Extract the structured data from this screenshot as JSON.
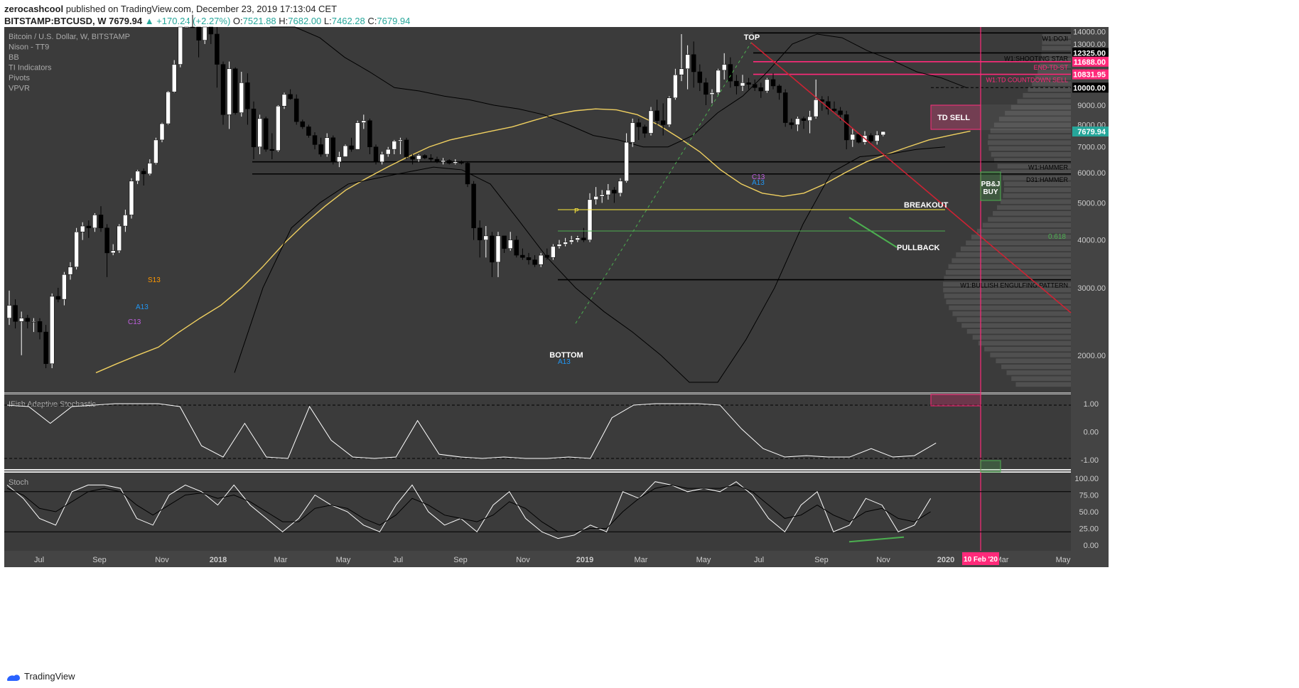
{
  "header": {
    "author": "zerocashcool",
    "published": "published on TradingView.com, December 23, 2019 17:13:04 CET",
    "symbol": "BITSTAMP:BTCUSD, W",
    "last": "7679.94",
    "change": "+170.24 (+2.27%)",
    "o_label": "O:",
    "o": "7521.88",
    "h_label": "H:",
    "h": "7682.00",
    "l_label": "L:",
    "l": "7462.28",
    "c_label": "C:",
    "c": "7679.94"
  },
  "legend": [
    "Bitcoin / U.S. Dollar, W, BITSTAMP",
    "Nison - TT9",
    "BB",
    "TI Indicators",
    "Pivots",
    "VPVR"
  ],
  "footer": {
    "brand": "TradingView"
  },
  "colors": {
    "background": "#3b3b3b",
    "up_candle": "#ffffff",
    "down_candle": "#000000",
    "ma_line": "#f0d060",
    "resistance_line": "#cc2233",
    "magenta": "#ff2a7a",
    "green": "#4caf50",
    "axis_text": "#cccccc"
  },
  "chart_data": {
    "type": "candlestick",
    "title": "Bitcoin / U.S. Dollar, W, BITSTAMP",
    "timeframe": "W",
    "x_tick_labels": [
      "Jul",
      "Sep",
      "Nov",
      "2018",
      "Mar",
      "May",
      "Jul",
      "Sep",
      "Nov",
      "2019",
      "Mar",
      "May",
      "Jul",
      "Sep",
      "Nov",
      "2020",
      "Mar",
      "May"
    ],
    "y_tick_labels": [
      "14000.00",
      "13000.00",
      "12000.00",
      "11000.00",
      "10000.00",
      "9000.00",
      "8000.00",
      "7000.00",
      "6000.00",
      "5000.00",
      "4000.00",
      "3000.00",
      "2000.00"
    ],
    "ylim": [
      1600,
      14400
    ],
    "scale": "log",
    "price_labels": [
      {
        "value": 12325.0,
        "text": "12325.00",
        "color": "#000000"
      },
      {
        "value": 11688.0,
        "text": "11688.00",
        "color": "#ff2a7a"
      },
      {
        "value": 10831.95,
        "text": "10831.95",
        "color": "#ff2a7a"
      },
      {
        "value": 10000.0,
        "text": "10000.00",
        "color": "#000000"
      },
      {
        "value": 7679.94,
        "text": "7679.94",
        "color": "#26a69a"
      }
    ],
    "horizontal_levels": [
      {
        "value": 13900,
        "label": "W1:DOJI"
      },
      {
        "value": 12325,
        "label": "W1:SHOOTING STAR"
      },
      {
        "value": 11688,
        "label": "END-TD-ST"
      },
      {
        "value": 10831.95,
        "label": "W1:TD COUNTDOWN SELL"
      },
      {
        "value": 6400,
        "label": "W1:HAMMER"
      },
      {
        "value": 5950,
        "label": "D31:HAMMER"
      },
      {
        "value": 3150,
        "label": "W1:BULLISH ENGULFING PATTERN"
      }
    ],
    "annotations": [
      "TOP",
      "BOTTOM",
      "BREAKOUT",
      "PULLBACK",
      "TD SELL",
      "PB&J BUY",
      "P",
      "0.618",
      "S13",
      "A13",
      "C13",
      "C13",
      "A13",
      "A13"
    ],
    "date_marker": "10 Feb '20",
    "candles": [
      [
        2500,
        2950,
        2400,
        2700
      ],
      [
        2700,
        2800,
        2350,
        2450
      ],
      [
        2450,
        2600,
        2000,
        2500
      ],
      [
        2500,
        2550,
        2350,
        2450
      ],
      [
        2450,
        2500,
        2300,
        2450
      ],
      [
        2450,
        2500,
        2200,
        2300
      ],
      [
        2300,
        2400,
        1850,
        1900
      ],
      [
        1900,
        2900,
        1850,
        2850
      ],
      [
        2850,
        3000,
        2750,
        2800
      ],
      [
        2800,
        3300,
        2700,
        3250
      ],
      [
        3250,
        3500,
        3150,
        3400
      ],
      [
        3400,
        4300,
        3350,
        4200
      ],
      [
        4200,
        4450,
        4000,
        4350
      ],
      [
        4350,
        4500,
        4050,
        4300
      ],
      [
        4300,
        4700,
        4200,
        4650
      ],
      [
        4650,
        4900,
        4200,
        4300
      ],
      [
        4300,
        4400,
        3200,
        3700
      ],
      [
        3700,
        3900,
        3650,
        3750
      ],
      [
        3750,
        4400,
        3700,
        4350
      ],
      [
        4350,
        4800,
        4200,
        4650
      ],
      [
        4650,
        5800,
        4550,
        5700
      ],
      [
        5700,
        6100,
        5600,
        6050
      ],
      [
        6050,
        6150,
        5550,
        5950
      ],
      [
        5950,
        6500,
        5900,
        6350
      ],
      [
        6350,
        7400,
        6300,
        7300
      ],
      [
        7300,
        8100,
        7200,
        8050
      ],
      [
        8050,
        9800,
        8000,
        9750
      ],
      [
        9750,
        11800,
        9700,
        11500
      ],
      [
        11500,
        17000,
        11300,
        16500
      ],
      [
        16500,
        17500,
        16000,
        17000
      ],
      [
        17000,
        18000,
        15500,
        16000
      ],
      [
        16000,
        17200,
        12000,
        13300
      ],
      [
        13300,
        17000,
        13000,
        14500
      ],
      [
        14500,
        15000,
        13000,
        13800
      ],
      [
        13800,
        14500,
        10000,
        11500
      ],
      [
        11500,
        11700,
        8000,
        8500
      ],
      [
        8500,
        11700,
        7800,
        11200
      ],
      [
        11200,
        11300,
        8500,
        8600
      ],
      [
        8600,
        11000,
        8400,
        10300
      ],
      [
        10300,
        10900,
        8000,
        8800
      ],
      [
        8800,
        9200,
        6500,
        7000
      ],
      [
        7000,
        8500,
        6700,
        8300
      ],
      [
        8300,
        8400,
        6800,
        6900
      ],
      [
        6900,
        7600,
        6500,
        6850
      ],
      [
        6850,
        9000,
        6800,
        8950
      ],
      [
        8950,
        9700,
        8800,
        9600
      ],
      [
        9600,
        9900,
        9300,
        9350
      ],
      [
        9350,
        9600,
        8000,
        8150
      ],
      [
        8150,
        8250,
        7800,
        7900
      ],
      [
        7900,
        8000,
        7400,
        7500
      ],
      [
        7500,
        7650,
        6900,
        7100
      ],
      [
        7100,
        7400,
        6600,
        6700
      ],
      [
        6700,
        7600,
        6600,
        7400
      ],
      [
        7400,
        7500,
        6300,
        6400
      ],
      [
        6400,
        6800,
        6200,
        6600
      ],
      [
        6600,
        7100,
        6600,
        7050
      ],
      [
        7050,
        7400,
        6800,
        6900
      ],
      [
        6900,
        8200,
        6900,
        8100
      ],
      [
        8100,
        8500,
        7800,
        8200
      ],
      [
        8200,
        8300,
        6700,
        7000
      ],
      [
        7000,
        7100,
        6300,
        6400
      ],
      [
        6400,
        6800,
        6300,
        6700
      ],
      [
        6700,
        7000,
        6600,
        6900
      ],
      [
        6900,
        7300,
        6700,
        7250
      ],
      [
        7250,
        7400,
        6700,
        7300
      ],
      [
        7300,
        7400,
        6500,
        6600
      ],
      [
        6600,
        6700,
        6300,
        6500
      ],
      [
        6500,
        6700,
        6400,
        6650
      ],
      [
        6650,
        6700,
        6500,
        6550
      ],
      [
        6550,
        6700,
        6400,
        6500
      ],
      [
        6500,
        6600,
        6350,
        6400
      ],
      [
        6400,
        6550,
        6300,
        6450
      ],
      [
        6450,
        6500,
        6300,
        6350
      ],
      [
        6350,
        6500,
        6300,
        6400
      ],
      [
        6400,
        6450,
        6300,
        6350
      ],
      [
        6350,
        6400,
        5500,
        5600
      ],
      [
        5600,
        5700,
        4000,
        4300
      ],
      [
        4300,
        4500,
        3600,
        4000
      ],
      [
        4000,
        4350,
        3600,
        4100
      ],
      [
        4100,
        4200,
        3200,
        3500
      ],
      [
        3500,
        4200,
        3200,
        4100
      ],
      [
        4100,
        4100,
        3700,
        3800
      ],
      [
        3800,
        4200,
        3750,
        4000
      ],
      [
        4000,
        4100,
        3600,
        3650
      ],
      [
        3650,
        3800,
        3550,
        3600
      ],
      [
        3600,
        3700,
        3450,
        3550
      ],
      [
        3550,
        3650,
        3400,
        3450
      ],
      [
        3450,
        3700,
        3400,
        3650
      ],
      [
        3650,
        3800,
        3550,
        3600
      ],
      [
        3600,
        3900,
        3550,
        3850
      ],
      [
        3850,
        4000,
        3800,
        3900
      ],
      [
        3900,
        4050,
        3850,
        3950
      ],
      [
        3950,
        4100,
        3900,
        4000
      ],
      [
        4000,
        4100,
        3950,
        4050
      ],
      [
        4050,
        4300,
        3950,
        4000
      ],
      [
        4000,
        5300,
        3950,
        5100
      ],
      [
        5100,
        5500,
        4950,
        5200
      ],
      [
        5200,
        5400,
        5000,
        5250
      ],
      [
        5250,
        5600,
        5100,
        5400
      ],
      [
        5400,
        5500,
        5000,
        5300
      ],
      [
        5300,
        5800,
        5200,
        5700
      ],
      [
        5700,
        7600,
        5650,
        7200
      ],
      [
        7200,
        8300,
        7000,
        8100
      ],
      [
        8100,
        8300,
        7300,
        7900
      ],
      [
        7900,
        8000,
        7400,
        7600
      ],
      [
        7600,
        8900,
        7500,
        8700
      ],
      [
        8700,
        9300,
        8000,
        8200
      ],
      [
        8200,
        9100,
        7500,
        8000
      ],
      [
        8000,
        9500,
        7900,
        9400
      ],
      [
        9400,
        11200,
        9300,
        10800
      ],
      [
        10800,
        13800,
        10400,
        11200
      ],
      [
        11200,
        12900,
        9900,
        12200
      ],
      [
        12200,
        13200,
        10000,
        11000
      ],
      [
        11000,
        11500,
        9800,
        10300
      ],
      [
        10300,
        10600,
        9000,
        9600
      ],
      [
        9600,
        9900,
        9100,
        9700
      ],
      [
        9700,
        11200,
        9600,
        11100
      ],
      [
        11100,
        12300,
        10500,
        11500
      ],
      [
        11500,
        12000,
        10000,
        10400
      ],
      [
        10400,
        10800,
        9600,
        10100
      ],
      [
        10100,
        10800,
        9800,
        10300
      ],
      [
        10300,
        10600,
        9900,
        10200
      ],
      [
        10200,
        10500,
        9800,
        10000
      ],
      [
        10000,
        10300,
        9400,
        9800
      ],
      [
        9800,
        10600,
        9700,
        10500
      ],
      [
        10500,
        10900,
        9900,
        10100
      ],
      [
        10100,
        10200,
        9300,
        9700
      ],
      [
        9700,
        9900,
        7900,
        8100
      ],
      [
        8100,
        8300,
        7800,
        8000
      ],
      [
        8000,
        8400,
        7700,
        8300
      ],
      [
        8300,
        8400,
        7800,
        8200
      ],
      [
        8200,
        8700,
        7600,
        8400
      ],
      [
        8400,
        10500,
        8300,
        9300
      ],
      [
        9300,
        9500,
        8700,
        9200
      ],
      [
        9200,
        9500,
        8500,
        8800
      ],
      [
        8800,
        9200,
        8600,
        8700
      ],
      [
        8700,
        8900,
        8200,
        8500
      ],
      [
        8500,
        8700,
        6900,
        7300
      ],
      [
        7300,
        7800,
        7000,
        7550
      ],
      [
        7550,
        7600,
        7150,
        7200
      ],
      [
        7200,
        7700,
        7100,
        7500
      ],
      [
        7500,
        7600,
        7100,
        7250
      ],
      [
        7250,
        7700,
        7100,
        7520
      ],
      [
        7521.88,
        7682,
        7462.28,
        7679.94
      ]
    ]
  },
  "indicators": {
    "stoch_rsi_title": "IFish Adaptive Stochastic",
    "stoch_rsi_ticks": [
      "1.00",
      "0.00",
      "-1.00"
    ],
    "stoch_title": "Stoch",
    "stoch_ticks": [
      "100.00",
      "75.00",
      "50.00",
      "25.00",
      "0.00"
    ]
  }
}
